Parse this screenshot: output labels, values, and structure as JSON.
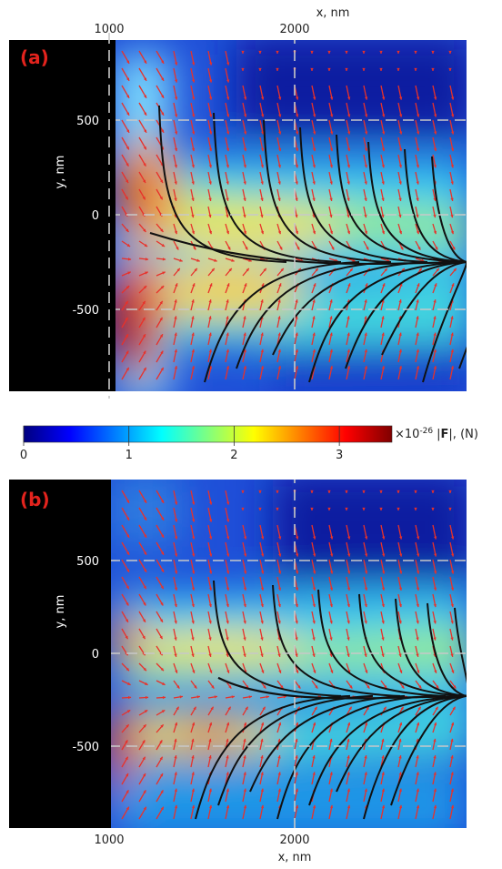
{
  "chart_data": [
    {
      "type": "heatmap",
      "panel": "(a)",
      "x_axis": {
        "label": "x, nm",
        "position": "top",
        "ticks": [
          1000,
          2000
        ],
        "range": [
          1000,
          2950
        ]
      },
      "y_axis": {
        "label": "y, nm",
        "ticks": [
          500,
          0,
          -500
        ],
        "range": [
          -950,
          920
        ]
      },
      "gridlines_dashed": {
        "x": [
          1000,
          2000
        ],
        "y": [
          500,
          0,
          -500
        ]
      },
      "overlays": [
        "force vector arrows (red)",
        "particle trajectories (black)"
      ],
      "converge_to_y": -250
    },
    {
      "type": "heatmap",
      "panel": "(b)",
      "x_axis": {
        "label": "x, nm",
        "position": "bottom",
        "ticks": [
          1000,
          2000
        ],
        "range": [
          1000,
          2950
        ]
      },
      "y_axis": {
        "label": "y, nm",
        "ticks": [
          500,
          0,
          -500
        ],
        "range": [
          -950,
          920
        ]
      },
      "gridlines_dashed": {
        "x": [
          1000,
          2000
        ],
        "y": [
          500,
          0,
          -500
        ]
      },
      "overlays": [
        "force vector arrows (red)",
        "particle trajectories (black)"
      ],
      "converge_to_y": -230
    }
  ],
  "colorbar": {
    "ticks": [
      "0",
      "1",
      "2",
      "3"
    ],
    "tick_values": [
      0,
      1,
      2,
      3
    ],
    "range": [
      0,
      3.5
    ],
    "multiplier": "×10",
    "exponent": "-26",
    "quantity_prefix": "|",
    "quantity_bold": "F",
    "quantity_suffix": "|, (N)",
    "colormap": "jet"
  },
  "colors": {
    "arrows": "#e8312a",
    "trajectories": "#111111",
    "mask": "#000000",
    "grid": "#c8c8c8"
  }
}
